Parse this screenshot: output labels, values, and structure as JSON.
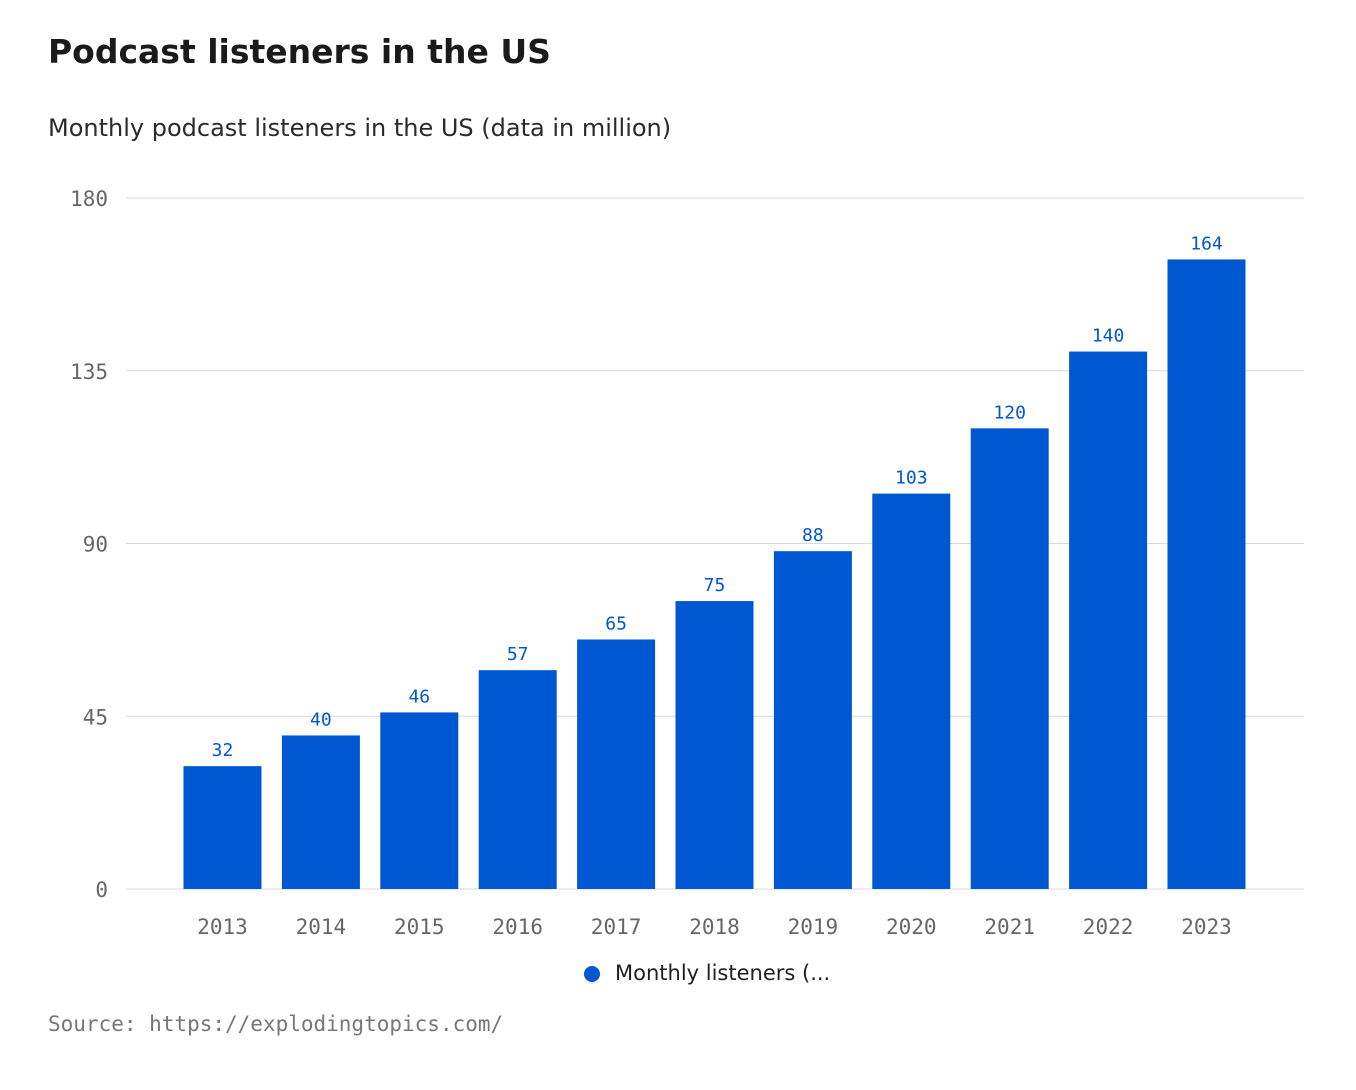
{
  "header": {
    "title": "Podcast listeners in the US",
    "subtitle": "Monthly podcast listeners in the US (data in million)"
  },
  "footer": {
    "source": "Source: https://explodingtopics.com/"
  },
  "colors": {
    "bar": "#0057d2",
    "label": "#0057d2",
    "grid": "#d9d9d9",
    "axis_text": "#666666"
  },
  "chart_data": {
    "type": "bar",
    "categories": [
      "2013",
      "2014",
      "2015",
      "2016",
      "2017",
      "2018",
      "2019",
      "2020",
      "2021",
      "2022",
      "2023"
    ],
    "series": [
      {
        "name": "Monthly listeners (...",
        "values": [
          32,
          40,
          46,
          57,
          65,
          75,
          88,
          103,
          120,
          140,
          164
        ]
      }
    ],
    "yticks": [
      0,
      45,
      90,
      135,
      180
    ],
    "ylim": [
      0,
      180
    ],
    "xlabel": "",
    "ylabel": "",
    "legend_position": "bottom-center",
    "grid": true
  }
}
